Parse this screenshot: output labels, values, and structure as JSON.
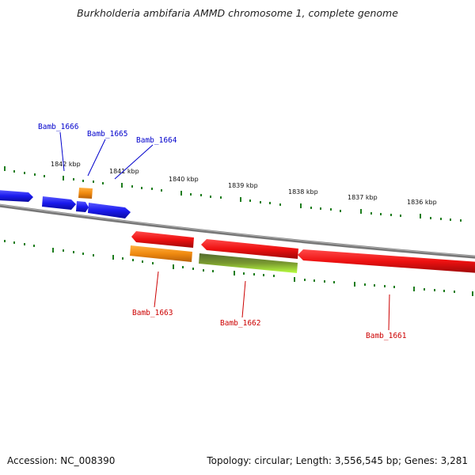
{
  "title": "Burkholderia ambifaria AMMD chromosome 1, complete genome",
  "footer": {
    "accession_text": "Accession: NC_008390",
    "info_text": "Topology: circular; Length: 3,556,545 bp; Genes: 3,281"
  },
  "colors": {
    "forward_strand_gene": "#1a1aee",
    "reverse_strand_gene": "#ee1111",
    "rna_orange": "#f08a10",
    "green_feature": "#88cc22",
    "backbone": "#808080",
    "ticks": "#1e7d1e",
    "forward_label": "#0000cc",
    "reverse_label": "#cc0000"
  },
  "scale_labels": [
    "1842 kbp",
    "1841 kbp",
    "1840 kbp",
    "1839 kbp",
    "1838 kbp",
    "1837 kbp",
    "1836 kbp"
  ],
  "genes": {
    "forward": [
      "Bamb_1666",
      "Bamb_1665",
      "Bamb_1664"
    ],
    "reverse": [
      "Bamb_1663",
      "Bamb_1662",
      "Bamb_1661"
    ]
  }
}
